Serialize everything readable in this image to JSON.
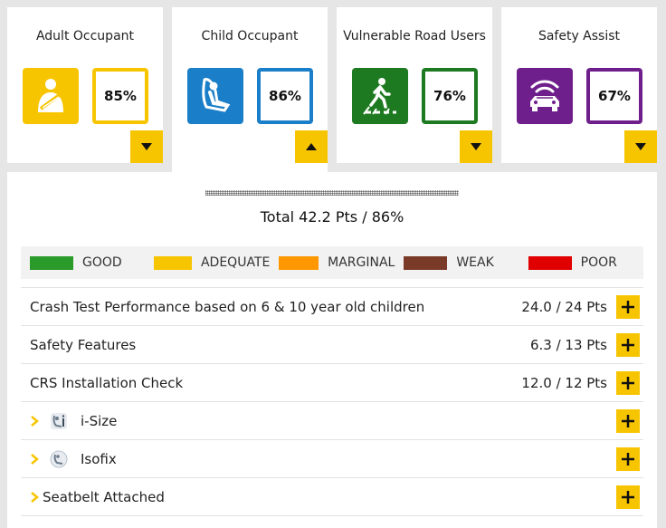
{
  "colors": {
    "accent": "#f7c500",
    "adult": "#f7c500",
    "child": "#1a7ec8",
    "vru": "#1e7a20",
    "safety": "#6f1f8c"
  },
  "cards": [
    {
      "title": "Adult Occupant",
      "score": "85%",
      "icon": "seatbelt-occupant-icon",
      "toggle": "chevron-down-icon"
    },
    {
      "title": "Child Occupant",
      "score": "86%",
      "icon": "child-seat-icon",
      "toggle": "chevron-up-icon"
    },
    {
      "title": "Vulnerable Road Users",
      "score": "76%",
      "icon": "pedestrian-icon",
      "toggle": "chevron-down-icon"
    },
    {
      "title": "Safety Assist",
      "score": "67%",
      "icon": "car-sensor-icon",
      "toggle": "chevron-down-icon"
    }
  ],
  "summary": {
    "total": "Total 42.2 Pts / 86%"
  },
  "legend": [
    {
      "label": "GOOD",
      "color": "#2a9a2a"
    },
    {
      "label": "ADEQUATE",
      "color": "#f7c500"
    },
    {
      "label": "MARGINAL",
      "color": "#ff9800"
    },
    {
      "label": "WEAK",
      "color": "#7a3a28"
    },
    {
      "label": "POOR",
      "color": "#e00000"
    }
  ],
  "rows": [
    {
      "label": "Crash Test Performance based on 6 & 10 year old children",
      "score": "24.0 / 24 Pts"
    },
    {
      "label": "Safety Features",
      "score": "6.3 / 13 Pts"
    },
    {
      "label": "CRS Installation Check",
      "score": "12.0 / 12 Pts"
    }
  ],
  "subrows": [
    {
      "label": "i-Size",
      "icon": "i-size-icon"
    },
    {
      "label": "Isofix",
      "icon": "isofix-icon"
    },
    {
      "label": "Seatbelt Attached",
      "icon": ""
    }
  ]
}
